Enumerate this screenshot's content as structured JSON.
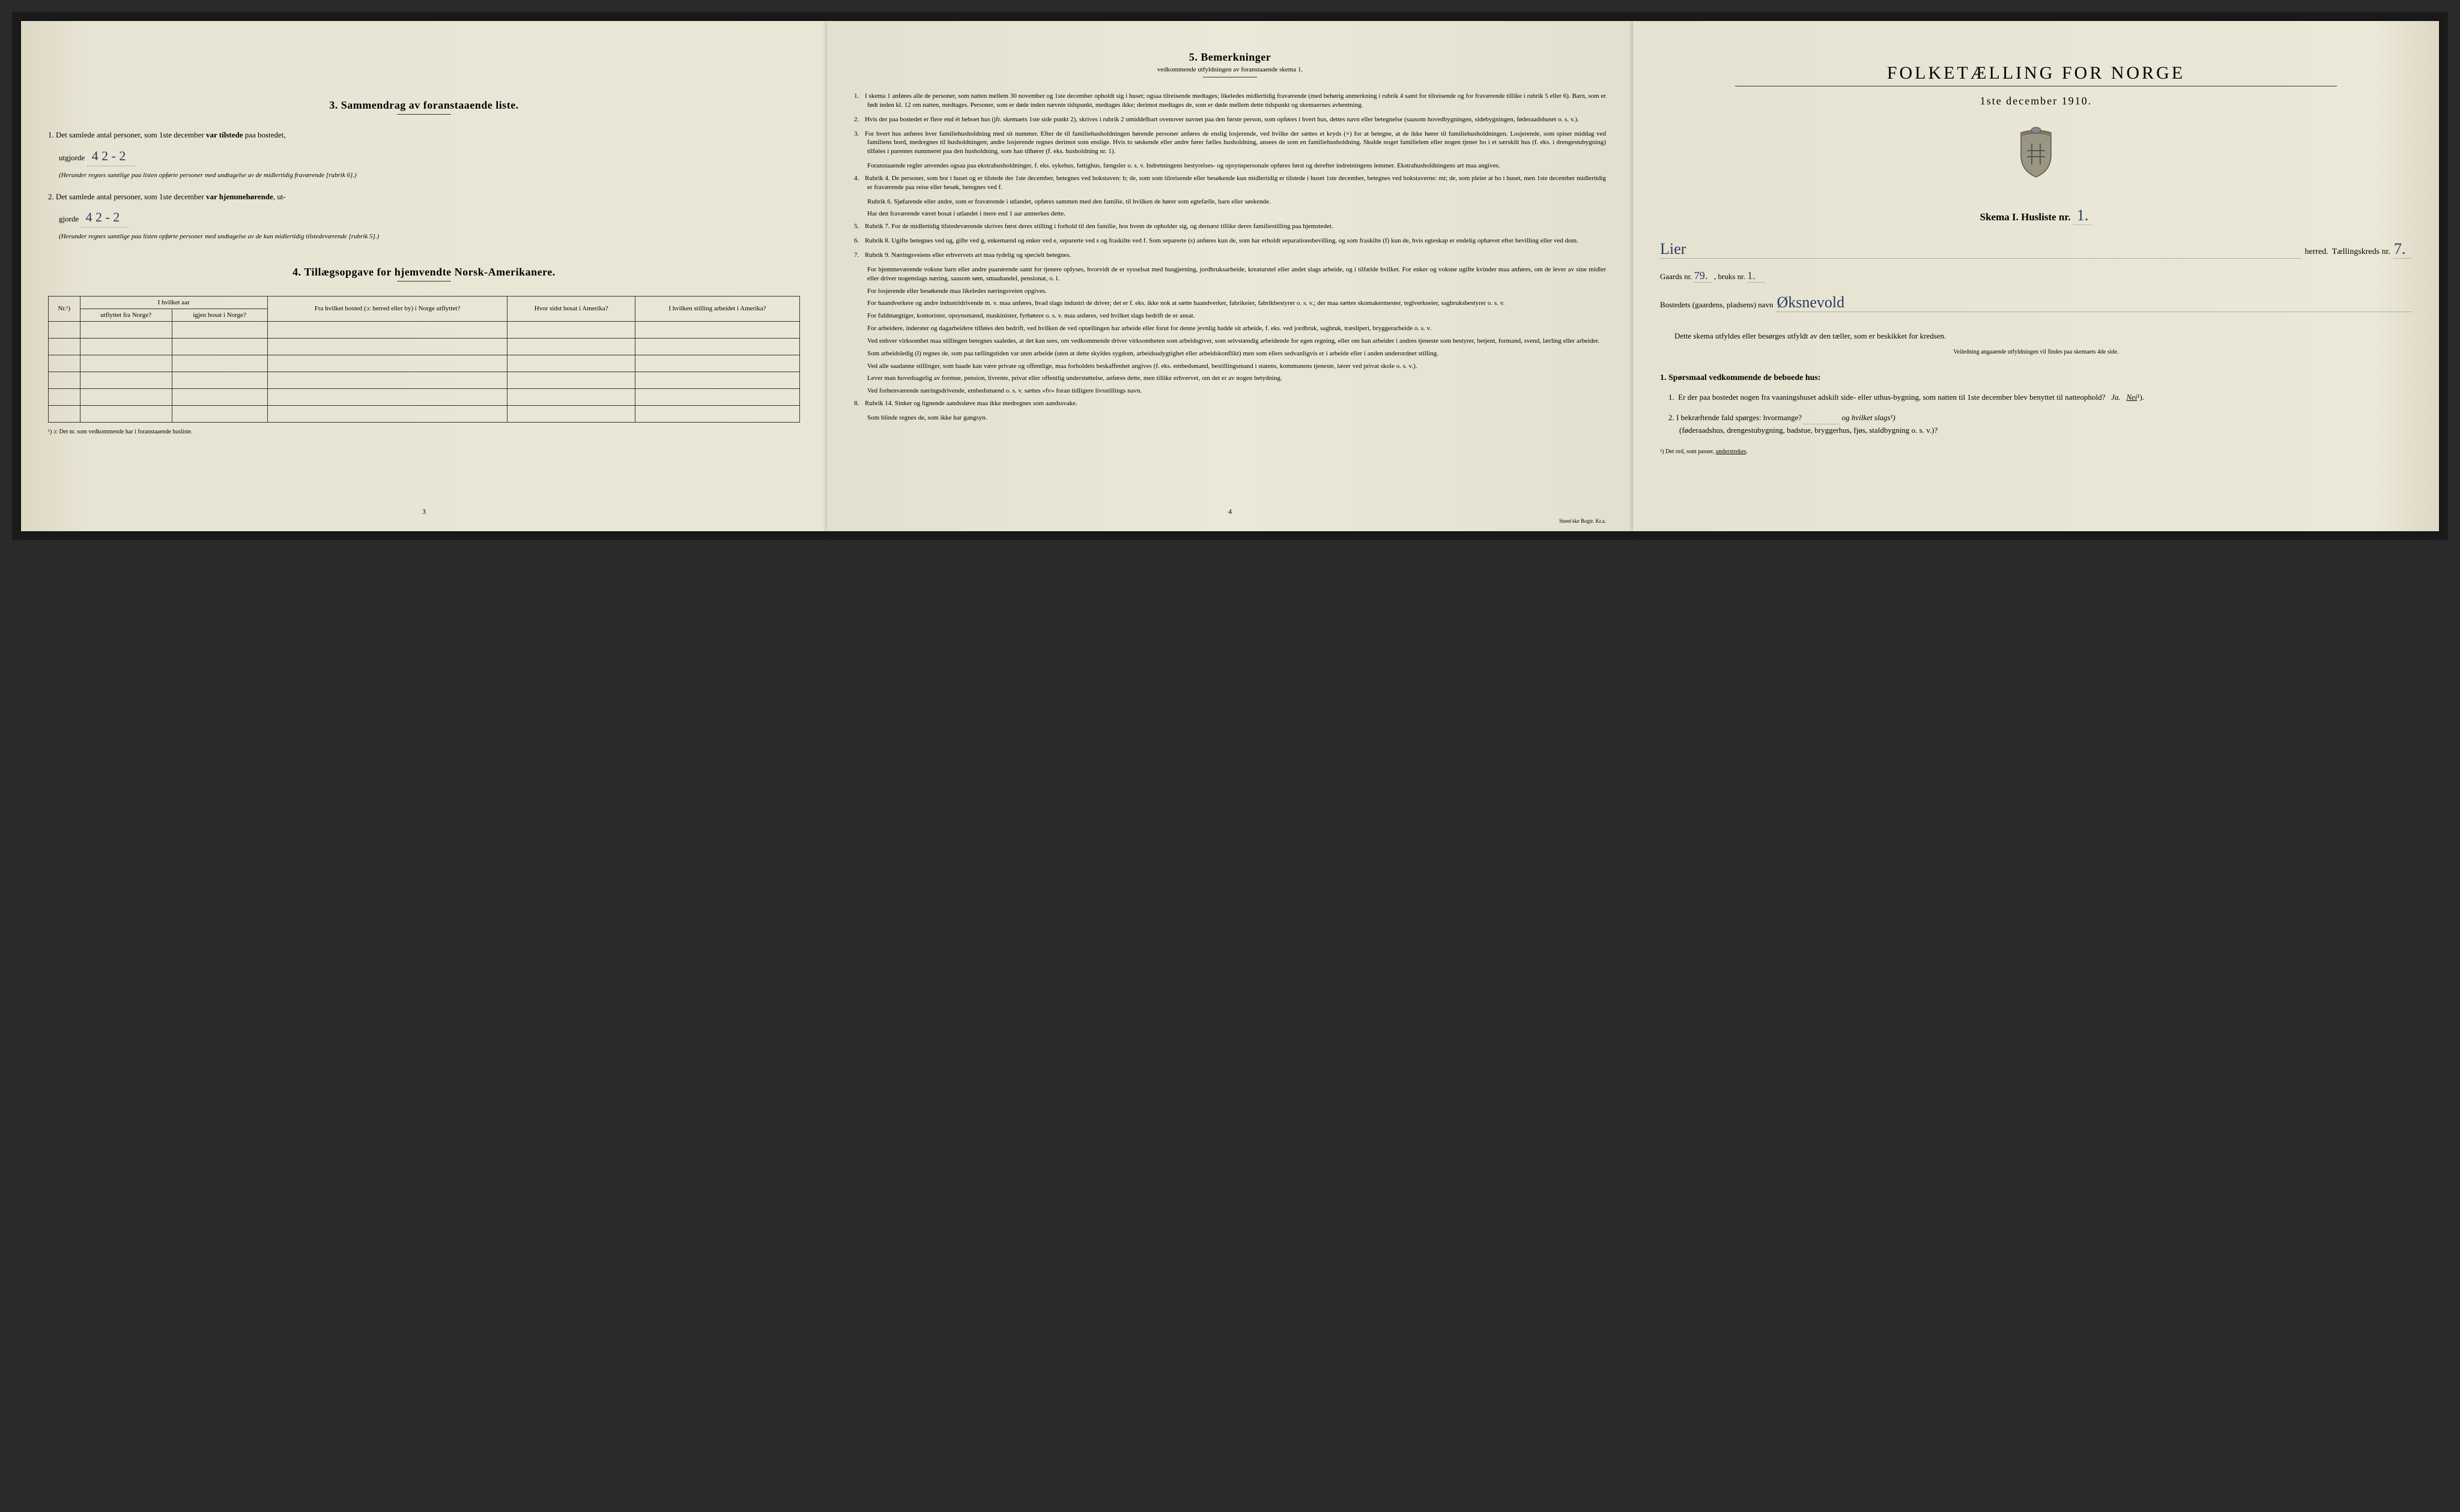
{
  "colors": {
    "paper": "#e8e4d4",
    "ink": "#1a1a1a",
    "handwriting": "#2a3a5a",
    "background": "#2a2a2a"
  },
  "page_left": {
    "section3": {
      "heading": "3.   Sammendrag av foranstaaende liste.",
      "item1_prefix": "1.  Det samlede antal personer, som 1ste december ",
      "item1_bold": "var tilstede",
      "item1_suffix": " paa bostedet,",
      "utgjorde": "utgjorde",
      "value1": "4  2 - 2",
      "note1": "(Herunder regnes samtlige paa listen opførte personer med undtagelse av de midlertidig fraværende [rubrik 6].)",
      "item2_prefix": "2.  Det samlede antal personer, som 1ste december ",
      "item2_bold": "var hjemmehørende",
      "item2_suffix": ", ut-",
      "gjorde": "gjorde",
      "value2": "4  2 - 2",
      "note2": "(Herunder regnes samtlige paa listen opførte personer med undtagelse av de kun midlertidig tilstedeværende [rubrik 5].)"
    },
    "section4": {
      "heading": "4.  Tillægsopgave for hjemvendte Norsk-Amerikanere.",
      "table": {
        "col1_top": "Nr.¹)",
        "col2_top": "I hvilket aar",
        "col2a": "utflyttet fra Norge?",
        "col2b": "igjen bosat i Norge?",
        "col3": "Fra hvilket bosted (ɔ: herred eller by) i Norge utflyttet?",
        "col4": "Hvor sidst bosat i Amerika?",
        "col5": "I hvilken stilling arbeidet i Amerika?",
        "rows": 6
      },
      "footnote": "¹) ɔ: Det nr. som vedkommende har i foranstaaende husliste."
    },
    "page_number": "3"
  },
  "page_middle": {
    "heading": "5.   Bemerkninger",
    "subtitle": "vedkommende utfyldningen av foranstaaende skema 1.",
    "items": [
      {
        "n": "1.",
        "text": "I skema 1 anføres alle de personer, som natten mellem 30 november og 1ste december opholdt sig i huset; ogsaa tilreisende medtages; likeledes midlertidig fraværende (med behørig anmerkning i rubrik 4 samt for tilreisende og for fraværende tillike i rubrik 5 eller 6). Barn, som er født inden kl. 12 om natten, medtages. Personer, som er døde inden nævnte tidspunkt, medtages ikke; derimot medtages de, som er døde mellem dette tidspunkt og skemaernes avhentning."
      },
      {
        "n": "2.",
        "text": "Hvis der paa bostedet er flere end ét beboet hus (jfr. skemaets 1ste side punkt 2), skrives i rubrik 2 umiddelbart ovenover navnet paa den første person, som opføres i hvert hus, dettes navn eller betegnelse (saasom hovedbygningen, sidebygningen, føderaadshuset o. s. v.)."
      },
      {
        "n": "3.",
        "text": "For hvert hus anføres hver familiehusholdning med sit nummer. Efter de til familiehusholdningen hørende personer anføres de enslig losjerende, ved hvilke der sættes et kryds (×) for at betegne, at de ikke hører til familiehusholdningen. Losjerende, som spiser middag ved familiens bord, medregnes til husholdningen; andre losjerende regnes derimot som enslige. Hvis to søskende eller andre fører fælles husholdning, ansees de som en familiehusholdning. Skulde noget familielem eller nogen tjener bo i et særskilt hus (f. eks. i drengestubygning) tilføies i parentes nummeret paa den husholdning, som han tilhører (f. eks. husholdning nr. 1)."
      },
      {
        "n": "",
        "text": "Foranstaaende regler anvendes ogsaa paa ekstrahusholdninger, f. eks. sykehus, fattighus, fængsler o. s. v. Indretningens bestyrelses- og opsynspersonale opføres først og derefter indretningens lemmer. Ekstrahusholdningens art maa angives."
      },
      {
        "n": "4.",
        "text": "Rubrik 4. De personer, som bor i huset og er tilstede der 1ste december, betegnes ved bokstaven: b; de, som som tilreisende eller besøkende kun midlertidig er tilstede i huset 1ste december, betegnes ved bokstaverne: mt; de, som pleier at bo i huset, men 1ste december midlertidig er fraværende paa reise eller besøk, betegnes ved f."
      },
      {
        "n": "",
        "text": "Rubrik 6. Sjøfarende eller andre, som er fraværende i utlandet, opføres sammen med den familie, til hvilken de hører som egtefælle, barn eller søskende."
      },
      {
        "n": "",
        "text": "Har den fraværende været bosat i utlandet i mere end 1 aar anmerkes dette."
      },
      {
        "n": "5.",
        "text": "Rubrik 7. For de midlertidig tilstedeværende skrives først deres stilling i forhold til den familie, hos hvem de opholder sig, og dernæst tillike deres familiestilling paa hjemstedet."
      },
      {
        "n": "6.",
        "text": "Rubrik 8. Ugifte betegnes ved ug, gifte ved g, enkemænd og enker ved e, separerte ved s og fraskilte ved f. Som separerte (s) anføres kun de, som har erholdt separationsbevilling, og som fraskilte (f) kun de, hvis egteskap er endelig ophævet efter bevilling eller ved dom."
      },
      {
        "n": "7.",
        "text": "Rubrik 9. Næringsveiens eller erhvervets art maa tydelig og specielt betegnes."
      },
      {
        "n": "",
        "text": "For hjemmeværende voksne barn eller andre paarørende samt for tjenere oplyses, hvorvidt de er sysselsat med husgjerning, jordbruksarbeide, kreaturstel eller andet slags arbeide, og i tilfælde hvilket. For enker og voksne ugifte kvinder maa anføres, om de lever av sine midler eller driver nogenslags næring, saasom søm, smaahandel, pensionat, o. l."
      },
      {
        "n": "",
        "text": "For losjerende eller besøkende maa likeledes næringsveien opgives."
      },
      {
        "n": "",
        "text": "For haandverkere og andre industridrivende m. v. maa anføres, hvad slags industri de driver; det er f. eks. ikke nok at sætte haandverker, fabrikeier, fabrikbestyrer o. s. v.; der maa sættes skomakermester, teglverkseier, sagbruksbestyrer o. s. v."
      },
      {
        "n": "",
        "text": "For fuldmægtiger, kontorister, opsynsmænd, maskinister, fyrbøtere o. s. v. maa anføres, ved hvilket slags bedrift de er ansat."
      },
      {
        "n": "",
        "text": "For arbeidere, inderster og dagarbeidere tilføies den bedrift, ved hvilken de ved optællingen har arbeide eller forut for denne jevnlig hadde sit arbeide, f. eks. ved jordbruk, sagbruk, træsliperi, bryggerarbeide o. s. v."
      },
      {
        "n": "",
        "text": "Ved enhver virksomhet maa stillingen betegnes saaledes, at det kan sees, om vedkommende driver virksomheten som arbeidsgiver, som selvstændig arbeidende for egen regning, eller om han arbeider i andres tjeneste som bestyrer, betjent, formand, svend, lærling eller arbeider."
      },
      {
        "n": "",
        "text": "Som arbeidsledig (l) regnes de, som paa tællingstiden var uten arbeide (uten at dette skyldes sygdom, arbeidsudygtighet eller arbeidskonflikt) men som ellers sedvanligvis er i arbeide eller i anden underordnet stilling."
      },
      {
        "n": "",
        "text": "Ved alle saadanne stillinger, som baade kan være private og offentlige, maa forholdets beskaffenhet angives (f. eks. embedsmand, bestillingsmand i statens, kommunens tjeneste, lærer ved privat skole o. s. v.)."
      },
      {
        "n": "",
        "text": "Lever man hovedsagelig av formue, pension, livrente, privat eller offentlig understøttelse, anføres dette, men tillike erhvervet, om det er av nogen betydning."
      },
      {
        "n": "",
        "text": "Ved forhenværende næringsdrivende, embedsmænd o. s. v. sættes «fv» foran tidligere livsstillings navn."
      },
      {
        "n": "8.",
        "text": "Rubrik 14. Sinker og lignende aandssløve maa ikke medregnes som aandssvake."
      },
      {
        "n": "",
        "text": "Som blinde regnes de, som ikke har gangsyn."
      }
    ],
    "page_number": "4",
    "printer": "Steen'ske Bogtr.  Kr.a."
  },
  "page_right": {
    "title": "FOLKETÆLLING FOR NORGE",
    "date": "1ste december 1910.",
    "skema_label": "Skema I.   Husliste nr.",
    "husliste_nr": "1.",
    "herred_value": "Lier",
    "herred_label": "herred.",
    "taellingskreds_label": "Tællingskreds nr.",
    "taellingskreds_value": "7.",
    "gaards_label": "Gaards nr.",
    "gaards_value": "79.",
    "bruks_label": ", bruks nr.",
    "bruks_value": "1.",
    "bosted_label": "Bostedets (gaardens, pladsens) navn",
    "bosted_value": "Øksnevold",
    "instruction": "Dette skema utfyldes eller besørges utfyldt av den tæller, som er beskikket for kredsen.",
    "small_note": "Veiledning angaaende utfyldningen vil findes paa skemaets 4de side.",
    "questions_heading": "1. Spørsmaal vedkommende de beboede hus:",
    "q1": "1.  Er der paa bostedet nogen fra vaaningshuset adskilt side- eller uthus-bygning, som natten til 1ste december blev benyttet til natteophold?   Ja.   Nei¹).",
    "q2_a": "2.  I bekræftende fald spørges: hvormange?",
    "q2_b": "og hvilket slags¹)",
    "q2_c": "(føderaadshus, drengestubygning, badstue, bryggerhus, fjøs, staldbygning o. s. v.)?",
    "footnote": "¹) Det ord, som passer, understrekes."
  }
}
